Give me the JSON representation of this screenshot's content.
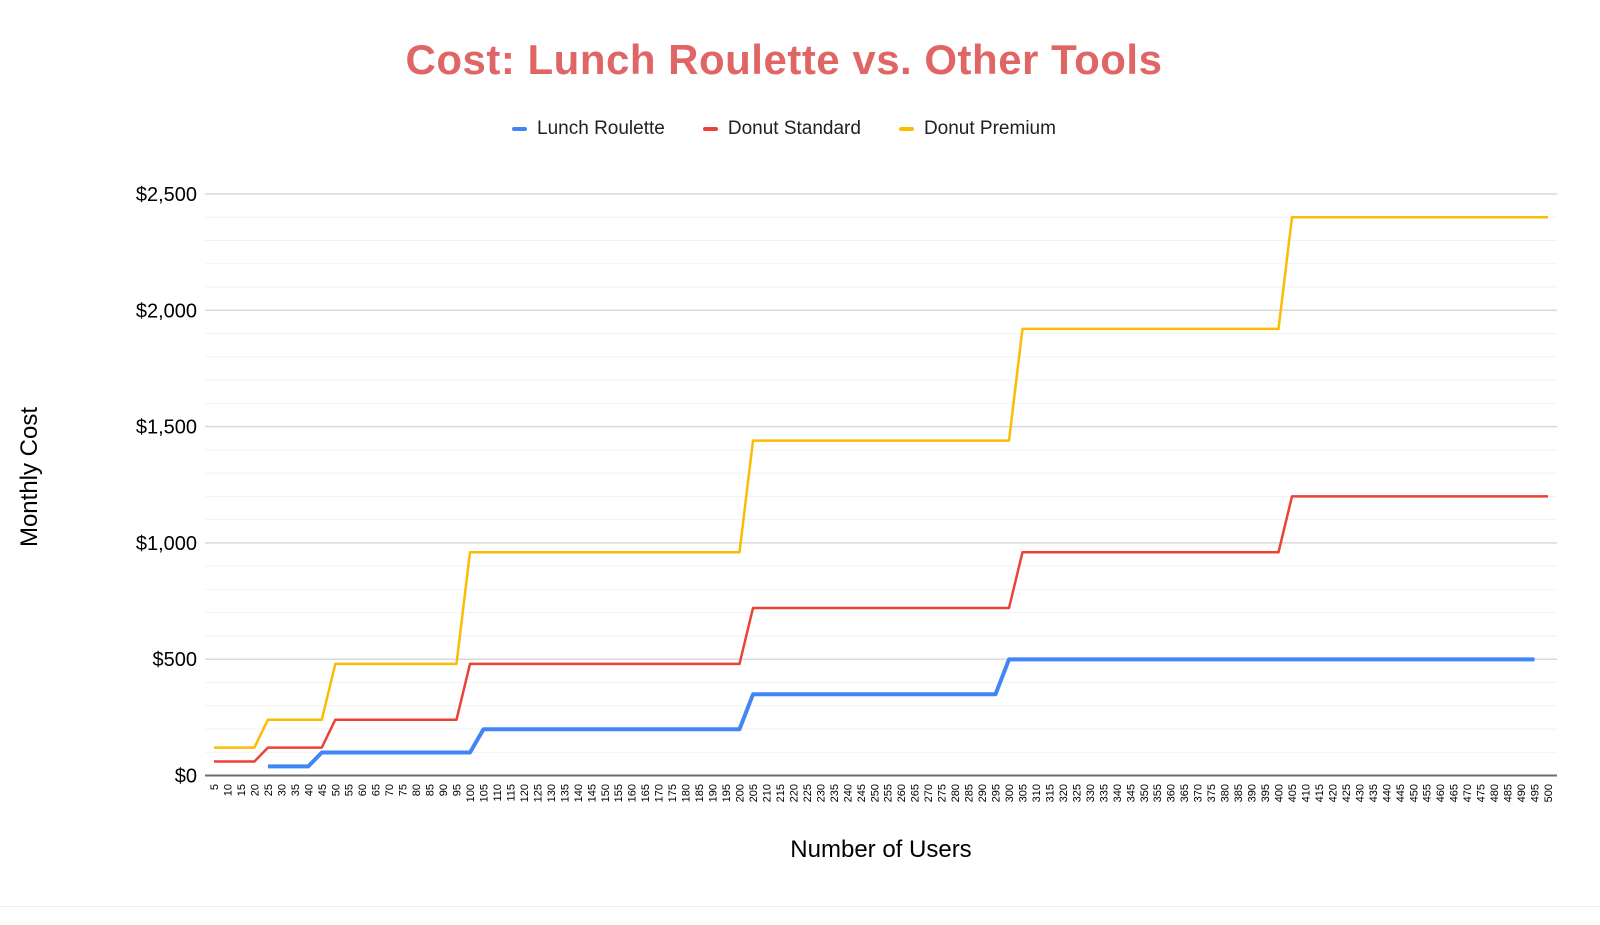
{
  "title": "Cost: Lunch Roulette vs. Other Tools",
  "title_color": "#E06666",
  "axis": {
    "x_title": "Number of Users",
    "y_title": "Monthly Cost",
    "y_tick_labels": [
      "$0",
      "$500",
      "$1,000",
      "$1,500",
      "$2,000",
      "$2,500"
    ],
    "y_tick_values": [
      0,
      500,
      1000,
      1500,
      2000,
      2500
    ]
  },
  "colors": {
    "lunch_roulette": "#4285F4",
    "donut_standard": "#EA4335",
    "donut_premium": "#FBBC04",
    "grid_major": "#D9D9D9",
    "grid_minor": "#F2F2F2",
    "axis_line": "#6E6E6E"
  },
  "legend": [
    {
      "label": "Lunch Roulette",
      "color": "#4285F4"
    },
    {
      "label": "Donut Standard",
      "color": "#EA4335"
    },
    {
      "label": "Donut Premium",
      "color": "#FBBC04"
    }
  ],
  "chart_data": {
    "type": "line",
    "title": "Cost: Lunch Roulette vs. Other Tools",
    "xlabel": "Number of Users",
    "ylabel": "Monthly Cost",
    "ylim": [
      0,
      2500
    ],
    "grid": "horizontal, minor every $100, major every $500",
    "legend_position": "top",
    "x": [
      5,
      10,
      15,
      20,
      25,
      30,
      35,
      40,
      45,
      50,
      55,
      60,
      65,
      70,
      75,
      80,
      85,
      90,
      95,
      100,
      105,
      110,
      115,
      120,
      125,
      130,
      135,
      140,
      145,
      150,
      155,
      160,
      165,
      170,
      175,
      180,
      185,
      190,
      195,
      200,
      205,
      210,
      215,
      220,
      225,
      230,
      235,
      240,
      245,
      250,
      255,
      260,
      265,
      270,
      275,
      280,
      285,
      290,
      295,
      300,
      305,
      310,
      315,
      320,
      325,
      330,
      335,
      340,
      345,
      350,
      355,
      360,
      365,
      370,
      375,
      380,
      385,
      390,
      395,
      400,
      405,
      410,
      415,
      420,
      425,
      430,
      435,
      440,
      445,
      450,
      455,
      460,
      465,
      470,
      475,
      480,
      485,
      490,
      495,
      500
    ],
    "series": [
      {
        "name": "Lunch Roulette",
        "color": "#4285F4",
        "stroke_width": 4,
        "values": [
          null,
          null,
          null,
          null,
          39,
          39,
          39,
          39,
          99,
          99,
          99,
          99,
          99,
          99,
          99,
          99,
          99,
          99,
          99,
          99,
          199,
          199,
          199,
          199,
          199,
          199,
          199,
          199,
          199,
          199,
          199,
          199,
          199,
          199,
          199,
          199,
          199,
          199,
          199,
          199,
          349,
          349,
          349,
          349,
          349,
          349,
          349,
          349,
          349,
          349,
          349,
          349,
          349,
          349,
          349,
          349,
          349,
          349,
          349,
          499,
          499,
          499,
          499,
          499,
          499,
          499,
          499,
          499,
          499,
          499,
          499,
          499,
          499,
          499,
          499,
          499,
          499,
          499,
          499,
          499,
          499,
          499,
          499,
          499,
          499,
          499,
          499,
          499,
          499,
          499,
          499,
          499,
          499,
          499,
          499,
          499,
          499,
          499,
          499,
          null
        ]
      },
      {
        "name": "Donut Standard",
        "color": "#EA4335",
        "stroke_width": 2.5,
        "values": [
          60,
          60,
          60,
          60,
          120,
          120,
          120,
          120,
          120,
          240,
          240,
          240,
          240,
          240,
          240,
          240,
          240,
          240,
          240,
          480,
          480,
          480,
          480,
          480,
          480,
          480,
          480,
          480,
          480,
          480,
          480,
          480,
          480,
          480,
          480,
          480,
          480,
          480,
          480,
          480,
          720,
          720,
          720,
          720,
          720,
          720,
          720,
          720,
          720,
          720,
          720,
          720,
          720,
          720,
          720,
          720,
          720,
          720,
          720,
          720,
          960,
          960,
          960,
          960,
          960,
          960,
          960,
          960,
          960,
          960,
          960,
          960,
          960,
          960,
          960,
          960,
          960,
          960,
          960,
          960,
          1200,
          1200,
          1200,
          1200,
          1200,
          1200,
          1200,
          1200,
          1200,
          1200,
          1200,
          1200,
          1200,
          1200,
          1200,
          1200,
          1200,
          1200,
          1200,
          1200
        ]
      },
      {
        "name": "Donut Premium",
        "color": "#FBBC04",
        "stroke_width": 2.5,
        "values": [
          120,
          120,
          120,
          120,
          240,
          240,
          240,
          240,
          240,
          480,
          480,
          480,
          480,
          480,
          480,
          480,
          480,
          480,
          480,
          960,
          960,
          960,
          960,
          960,
          960,
          960,
          960,
          960,
          960,
          960,
          960,
          960,
          960,
          960,
          960,
          960,
          960,
          960,
          960,
          960,
          1440,
          1440,
          1440,
          1440,
          1440,
          1440,
          1440,
          1440,
          1440,
          1440,
          1440,
          1440,
          1440,
          1440,
          1440,
          1440,
          1440,
          1440,
          1440,
          1440,
          1920,
          1920,
          1920,
          1920,
          1920,
          1920,
          1920,
          1920,
          1920,
          1920,
          1920,
          1920,
          1920,
          1920,
          1920,
          1920,
          1920,
          1920,
          1920,
          1920,
          2400,
          2400,
          2400,
          2400,
          2400,
          2400,
          2400,
          2400,
          2400,
          2400,
          2400,
          2400,
          2400,
          2400,
          2400,
          2400,
          2400,
          2400,
          2400,
          2400
        ]
      }
    ]
  }
}
